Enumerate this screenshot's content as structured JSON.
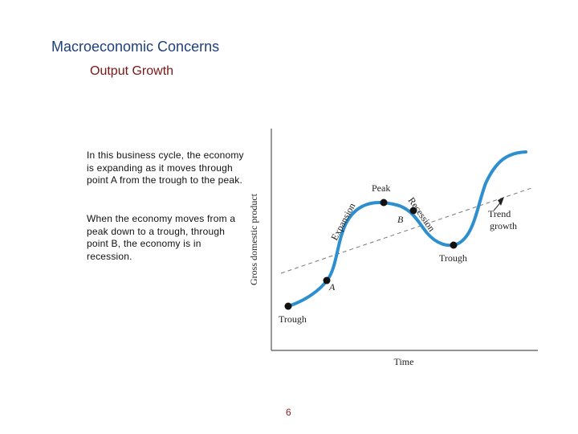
{
  "slide": {
    "title": "Macroeconomic Concerns",
    "subtitle": "Output Growth",
    "paragraphs": [
      "In this business cycle, the economy is expanding as it moves through point A from the trough to the peak.",
      "When the economy moves from a peak down to a trough, through point B, the economy is in recession."
    ],
    "page_number": "6"
  },
  "diagram": {
    "y_axis_label": "Gross domestic product",
    "x_axis_label": "Time",
    "labels": {
      "trough_left": "Trough",
      "point_a": "A",
      "expansion": "Expansion",
      "peak": "Peak",
      "point_b": "B",
      "recession": "Recession",
      "trough_right": "Trough",
      "trend_line1": "Trend",
      "trend_line2": "growth"
    },
    "colors": {
      "curve": "#2e8fce",
      "axis": "#555555",
      "trend": "#777777",
      "points": "#111111"
    }
  }
}
